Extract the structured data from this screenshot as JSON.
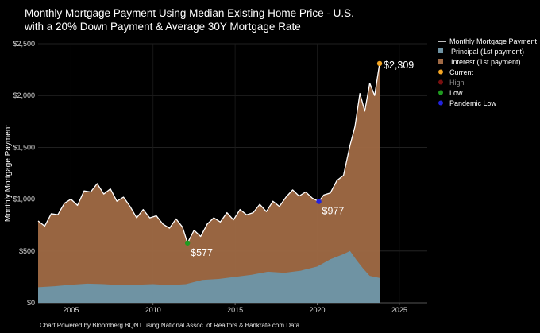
{
  "chart_data": {
    "type": "area",
    "title_line1": "Monthly Mortgage Payment Using Median Existing Home Price - U.S.",
    "title_line2": "with a 20% Down Payment & Average 30Y Mortgage Rate",
    "ylabel": "Monthly Mortgage Payment",
    "xlim": [
      2003.0,
      2026.7
    ],
    "ylim": [
      0,
      2500
    ],
    "x_ticks": [
      2005,
      2010,
      2015,
      2020,
      2025
    ],
    "x_tick_labels": [
      "2005",
      "2010",
      "2015",
      "2020",
      "2025"
    ],
    "y_ticks": [
      0,
      500,
      1000,
      1500,
      2000,
      2500
    ],
    "y_tick_labels": [
      "$0",
      "$500",
      "$1,000",
      "$1,500",
      "$2,000",
      "$2,500"
    ],
    "grid": true,
    "legend_position": "top-right",
    "legend": [
      {
        "label": "Monthly Mortgage Payment",
        "kind": "line",
        "color": "#ffffff",
        "dim": false
      },
      {
        "label": "Principal (1st payment)",
        "kind": "square",
        "color": "#6f93a3",
        "dim": false
      },
      {
        "label": "Interest (1st payment)",
        "kind": "square",
        "color": "#a06a45",
        "dim": false
      },
      {
        "label": "Current",
        "kind": "dot",
        "color": "#f5a623",
        "dim": false
      },
      {
        "label": "High",
        "kind": "dot",
        "color": "#7a1010",
        "dim": true
      },
      {
        "label": "Low",
        "kind": "dot",
        "color": "#1f9a1f",
        "dim": false
      },
      {
        "label": "Pandemic Low",
        "kind": "dot",
        "color": "#2222dd",
        "dim": false
      }
    ],
    "series": [
      {
        "name": "Monthly Mortgage Payment",
        "x": [
          2003.0,
          2003.4,
          2003.8,
          2004.2,
          2004.6,
          2005.0,
          2005.4,
          2005.8,
          2006.2,
          2006.6,
          2007.0,
          2007.4,
          2007.8,
          2008.2,
          2008.6,
          2009.0,
          2009.4,
          2009.8,
          2010.2,
          2010.6,
          2011.0,
          2011.4,
          2011.8,
          2012.1,
          2012.5,
          2012.9,
          2013.3,
          2013.7,
          2014.1,
          2014.5,
          2014.9,
          2015.3,
          2015.7,
          2016.1,
          2016.5,
          2016.9,
          2017.3,
          2017.7,
          2018.1,
          2018.5,
          2018.9,
          2019.3,
          2019.7,
          2020.1,
          2020.4,
          2020.8,
          2021.2,
          2021.6,
          2022.0,
          2022.3,
          2022.6,
          2022.9,
          2023.2,
          2023.5,
          2023.8
        ],
        "values": [
          790,
          740,
          860,
          850,
          960,
          1000,
          940,
          1080,
          1070,
          1150,
          1050,
          1100,
          980,
          1020,
          930,
          820,
          900,
          820,
          840,
          760,
          720,
          810,
          730,
          577,
          700,
          640,
          760,
          820,
          780,
          870,
          800,
          900,
          850,
          870,
          950,
          880,
          980,
          930,
          1020,
          1090,
          1030,
          1070,
          1010,
          977,
          1040,
          1060,
          1180,
          1230,
          1520,
          1700,
          2020,
          1850,
          2120,
          2000,
          2309
        ]
      },
      {
        "name": "Principal (1st payment)",
        "x": [
          2003.0,
          2004.0,
          2005.0,
          2006.0,
          2007.0,
          2008.0,
          2009.0,
          2010.0,
          2011.0,
          2012.0,
          2013.0,
          2014.0,
          2015.0,
          2016.0,
          2017.0,
          2018.0,
          2019.0,
          2020.0,
          2020.8,
          2021.6,
          2022.0,
          2022.4,
          2022.8,
          2023.2,
          2023.8
        ],
        "values": [
          150,
          160,
          175,
          185,
          180,
          170,
          175,
          180,
          170,
          180,
          220,
          230,
          250,
          270,
          300,
          290,
          310,
          350,
          420,
          470,
          500,
          410,
          330,
          260,
          240
        ]
      }
    ],
    "annotations": [
      {
        "label": "$2,309",
        "x": 2023.8,
        "y": 2309,
        "color": "#f5a623"
      },
      {
        "label": "$577",
        "x": 2012.1,
        "y": 577,
        "color": "#1f9a1f"
      },
      {
        "label": "$977",
        "x": 2020.1,
        "y": 977,
        "color": "#2222dd"
      }
    ],
    "footer": "Chart Powered by Bloomberg BQNT using National Assoc. of Realtors & Bankrate.com Data"
  }
}
